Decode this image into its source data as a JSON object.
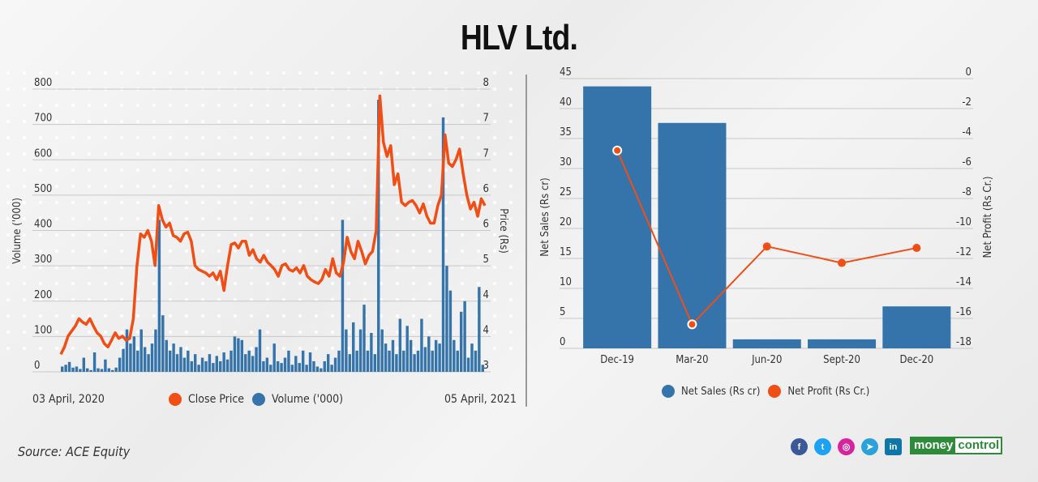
{
  "title": "HLV Ltd.",
  "source": "Source: ACE Equity",
  "brand": "moneycontrol",
  "social_icons": [
    "facebook-icon",
    "twitter-icon",
    "instagram-icon",
    "telegram-icon",
    "linkedin-icon"
  ],
  "colors": {
    "blue": "#3574aa",
    "orange": "#f04e14"
  },
  "chart_data": [
    {
      "type": "bar+line",
      "x_start_label": "03 April, 2020",
      "x_end_label": "05 April, 2021",
      "ylabel_left": "Volume ('000)",
      "ylabel_right": "Price (Rs)",
      "ylim_left": [
        0,
        800
      ],
      "ylim_right": [
        3,
        8
      ],
      "left_ticks": [
        "0",
        "100",
        "200",
        "300",
        "400",
        "500",
        "600",
        "700",
        "800"
      ],
      "right_ticks": [
        "3",
        "4",
        "4",
        "5",
        "6",
        "6",
        "7",
        "7",
        "8"
      ],
      "grid": true,
      "legend_position": "bottom",
      "series": [
        {
          "name": "Close Price",
          "type": "line",
          "color": "#f04e14",
          "values": [
            3.31,
            3.44,
            3.63,
            3.72,
            3.81,
            3.94,
            3.88,
            3.84,
            3.94,
            3.81,
            3.69,
            3.63,
            3.5,
            3.44,
            3.56,
            3.69,
            3.59,
            3.63,
            3.56,
            3.59,
            3.94,
            4.88,
            5.44,
            5.38,
            5.5,
            5.31,
            4.88,
            5.94,
            5.69,
            5.56,
            5.63,
            5.41,
            5.38,
            5.31,
            5.44,
            5.47,
            5.31,
            4.88,
            4.81,
            4.78,
            4.75,
            4.69,
            4.75,
            4.63,
            4.78,
            4.44,
            4.88,
            5.25,
            5.28,
            5.19,
            5.31,
            5.31,
            5.06,
            5.16,
            5.0,
            4.94,
            5.06,
            4.94,
            4.88,
            4.81,
            4.69,
            4.88,
            4.91,
            4.81,
            4.78,
            4.84,
            4.75,
            4.88,
            4.69,
            4.63,
            4.59,
            4.56,
            4.63,
            4.81,
            4.69,
            5.0,
            4.75,
            4.69,
            4.94,
            5.38,
            5.13,
            5.0,
            5.31,
            5.13,
            4.91,
            5.06,
            5.13,
            5.5,
            7.88,
            7.06,
            6.81,
            7.0,
            6.31,
            6.5,
            6.0,
            5.94,
            6.0,
            6.03,
            5.94,
            5.81,
            5.97,
            5.75,
            5.63,
            5.63,
            5.94,
            6.13,
            7.19,
            6.69,
            6.63,
            6.75,
            6.94,
            6.5,
            6.13,
            5.88,
            6.0,
            5.75,
            6.06,
            5.94
          ]
        },
        {
          "name": "Volume ('000)",
          "type": "bar",
          "color": "#3574aa",
          "values": [
            15,
            20,
            28,
            12,
            15,
            8,
            40,
            10,
            5,
            55,
            10,
            8,
            35,
            10,
            5,
            12,
            40,
            65,
            120,
            80,
            100,
            60,
            120,
            70,
            50,
            80,
            120,
            430,
            160,
            90,
            60,
            80,
            50,
            70,
            40,
            60,
            30,
            50,
            20,
            40,
            30,
            50,
            25,
            45,
            30,
            55,
            35,
            60,
            100,
            95,
            90,
            50,
            60,
            45,
            70,
            120,
            30,
            40,
            20,
            80,
            30,
            25,
            40,
            60,
            20,
            45,
            25,
            60,
            20,
            55,
            30,
            15,
            10,
            30,
            50,
            20,
            40,
            60,
            430,
            120,
            50,
            140,
            60,
            120,
            190,
            60,
            110,
            50,
            770,
            120,
            80,
            60,
            90,
            50,
            150,
            60,
            130,
            90,
            50,
            60,
            150,
            70,
            100,
            60,
            90,
            80,
            720,
            300,
            230,
            90,
            60,
            170,
            200,
            40,
            80,
            60,
            240,
            20
          ]
        }
      ]
    },
    {
      "type": "bar+line",
      "categories": [
        "Dec-19",
        "Mar-20",
        "Jun-20",
        "Sept-20",
        "Dec-20"
      ],
      "ylabel_left": "Net Sales (Rs cr)",
      "ylabel_right": "Net Profit (Rs Cr.)",
      "ylim_left": [
        0,
        45
      ],
      "ylim_right": [
        -18,
        0
      ],
      "left_ticks": [
        "0",
        "5",
        "10",
        "15",
        "20",
        "25",
        "30",
        "35",
        "40",
        "45"
      ],
      "right_ticks": [
        "-18",
        "-16",
        "-14",
        "-12",
        "-10",
        "-8",
        "-6",
        "-4",
        "-2",
        "0"
      ],
      "grid": true,
      "legend_position": "bottom",
      "series": [
        {
          "name": "Net Sales (Rs cr)",
          "type": "bar",
          "color": "#3574aa",
          "values": [
            43.7,
            37.6,
            1.5,
            1.5,
            7.0
          ]
        },
        {
          "name": "Net Profit (Rs Cr.)",
          "type": "line",
          "color": "#f04e14",
          "values": [
            -4.8,
            -16.4,
            -11.2,
            -12.3,
            -11.3
          ]
        }
      ]
    }
  ]
}
